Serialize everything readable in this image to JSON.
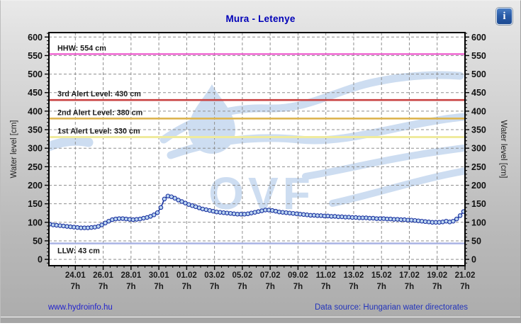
{
  "header": {
    "title": "Mura - Letenye",
    "info_glyph": "i"
  },
  "footer": {
    "site_link": "www.hydroinfo.hu",
    "data_source": "Data source: Hungarian water directorates"
  },
  "chart_data": {
    "type": "line",
    "title": "Mura - Letenye",
    "ylabel_left": "Water level [cm]",
    "ylabel_right": "Water level [cm]",
    "ylim": [
      -17,
      612
    ],
    "yticks_major": [
      0,
      50,
      100,
      150,
      200,
      250,
      300,
      350,
      400,
      450,
      500,
      550,
      600
    ],
    "y_minor_step": 10,
    "grid": true,
    "grid_color": "#8f8f8f",
    "background": "#ffffff",
    "watermark_text": "OVF",
    "watermark_color": "#cdddf1",
    "x_axis": {
      "days_total": 29.9,
      "tick_first_day": 1.9,
      "tick_step_days": 2,
      "minor_step_days": 0.5,
      "tick_labels": [
        "24.01",
        "26.01",
        "28.01",
        "30.01",
        "01.02",
        "03.02",
        "05.02",
        "07.02",
        "09.02",
        "11.02",
        "13.02",
        "15.02",
        "17.02",
        "19.02",
        "21.02"
      ],
      "tick_sublabel": "7h"
    },
    "reference_lines": [
      {
        "label": "HHW: 554 cm",
        "value": 554,
        "color": "#ee52cc",
        "width": 2.2,
        "label_side": "above"
      },
      {
        "label": "3rd Alert Level: 430 cm",
        "value": 430,
        "color": "#c94343",
        "width": 2.6,
        "label_side": "above"
      },
      {
        "label": "2nd Alert Level: 380 cm",
        "value": 380,
        "color": "#ddb551",
        "width": 2.6,
        "label_side": "above"
      },
      {
        "label": "1st Alert Level: 330 cm",
        "value": 330,
        "color": "#efeb9e",
        "width": 3.0,
        "label_side": "above"
      },
      {
        "label": "LLW: 43 cm",
        "value": 43,
        "color": "#a9b3e4",
        "width": 2.6,
        "label_side": "below"
      }
    ],
    "series": [
      {
        "name": "water level",
        "line_color": "#17309f",
        "marker_fill": "#bdd6f0",
        "start_day": 0.05,
        "end_day": 29.8,
        "values": [
          95,
          93,
          92,
          91,
          90,
          89,
          88,
          87,
          86,
          85,
          85,
          85,
          86,
          87,
          89,
          93,
          98,
          103,
          107,
          109,
          110,
          110,
          109,
          108,
          107,
          108,
          109,
          111,
          113,
          116,
          120,
          126,
          140,
          163,
          171,
          169,
          165,
          160,
          156,
          152,
          148,
          145,
          142,
          139,
          136,
          134,
          132,
          130,
          128,
          127,
          126,
          125,
          124,
          123,
          122,
          122,
          122,
          123,
          125,
          127,
          129,
          131,
          133,
          133,
          132,
          130,
          128,
          127,
          126,
          125,
          124,
          123,
          122,
          121,
          120,
          119,
          119,
          118,
          118,
          117,
          117,
          116,
          116,
          115,
          115,
          114,
          114,
          113,
          113,
          112,
          112,
          112,
          111,
          111,
          110,
          110,
          110,
          109,
          109,
          108,
          108,
          107,
          107,
          106,
          106,
          105,
          104,
          103,
          102,
          101,
          100,
          100,
          100,
          101,
          103,
          101,
          103,
          109,
          118,
          129
        ]
      }
    ]
  }
}
